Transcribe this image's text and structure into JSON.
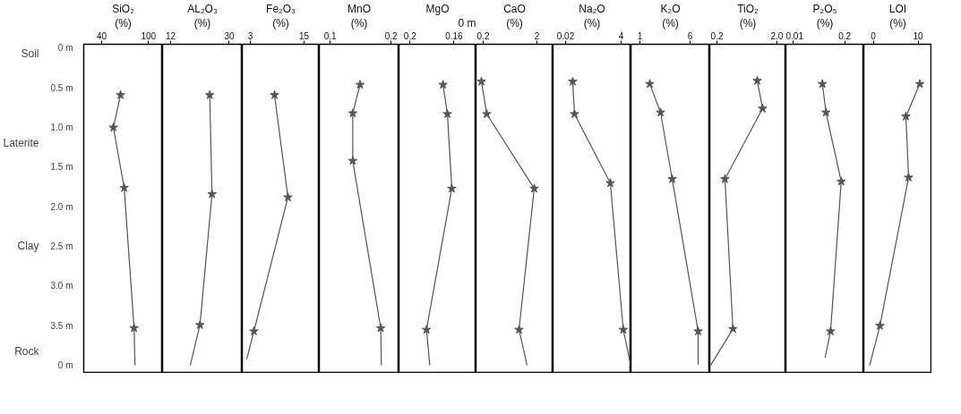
{
  "chart_data": [
    {
      "type": "line",
      "title": "SiO₂",
      "subtitle": "(%)",
      "xlim": [
        17,
        118
      ],
      "xticks": [
        40,
        100
      ],
      "ylim": [
        4.1,
        -0.05
      ],
      "yticks": [
        {
          "value": 0,
          "label": "0 m"
        },
        {
          "value": 0.5,
          "label": "0.5 m"
        },
        {
          "value": 1.0,
          "label": "1.0 m"
        },
        {
          "value": 1.5,
          "label": "1.5 m"
        },
        {
          "value": 2.0,
          "label": "2.0 m"
        },
        {
          "value": 2.5,
          "label": "2.5 m"
        },
        {
          "value": 3.0,
          "label": "3.0 m"
        },
        {
          "value": 3.5,
          "label": "3.5 m"
        },
        {
          "value": 4.0,
          "label": "0 m"
        }
      ],
      "annotations": [
        "Soil",
        "Laterite",
        "Clay",
        "Rock"
      ],
      "series": [
        {
          "color": "#555555",
          "marker": "star",
          "x": [
            64.2,
            55,
            68.8,
            81.5
          ],
          "values": [
            0.59,
            1.0,
            1.76,
            3.53
          ]
        },
        {
          "color": "#555555",
          "marker": "none",
          "x": [
            81.5,
            82.7
          ],
          "values": [
            3.53,
            4.0
          ]
        }
      ]
    },
    {
      "type": "line",
      "title": "AL₂O₃",
      "subtitle": "(%)",
      "xlim": [
        9.5,
        34
      ],
      "xticks": [
        12,
        30
      ],
      "ylim": [
        4.1,
        -0.05
      ],
      "tick_labels": "x",
      "series": [
        {
          "color": "#555555",
          "marker": "star",
          "x": [
            24.0,
            24.7,
            21.0
          ],
          "values": [
            0.59,
            1.84,
            3.49
          ]
        },
        {
          "color": "#555555",
          "marker": "none",
          "x": [
            21.0,
            18.0
          ],
          "values": [
            3.49,
            4.0
          ]
        }
      ]
    },
    {
      "type": "line",
      "title": "Fe₂O₃",
      "subtitle": "(%)",
      "xlim": [
        1.2,
        18.4
      ],
      "xticks": [
        3,
        15
      ],
      "ylim": [
        4.1,
        -0.05
      ],
      "tick_labels": "x",
      "series": [
        {
          "color": "#555555",
          "marker": "star",
          "x": [
            8.4,
            11.4,
            3.8
          ],
          "values": [
            0.59,
            1.88,
            3.57
          ]
        },
        {
          "color": "#555555",
          "marker": "none",
          "x": [
            3.8,
            2.2
          ],
          "values": [
            3.57,
            3.92
          ]
        }
      ]
    },
    {
      "type": "line",
      "title": "MnO",
      "subtitle": "(%)",
      "xlim": [
        0.082,
        0.213
      ],
      "xticks": [
        0.1,
        0.2
      ],
      "ylim": [
        4.1,
        -0.05
      ],
      "tick_labels": "x",
      "series": [
        {
          "color": "#555555",
          "marker": "star",
          "x": [
            0.149,
            0.137,
            0.137,
            0.183
          ],
          "values": [
            0.46,
            0.82,
            1.42,
            3.53
          ]
        },
        {
          "color": "#555555",
          "marker": "none",
          "x": [
            0.183,
            0.184
          ],
          "values": [
            3.53,
            4.0
          ]
        }
      ]
    },
    {
      "type": "line",
      "title": "MgO",
      "annotations": [
        "0 m"
      ],
      "xlim": [
        0.21,
        0.14
      ],
      "xticks": [
        0.2,
        0.16
      ],
      "ylim": [
        4.1,
        -0.05
      ],
      "tick_labels": "x",
      "series": [
        {
          "color": "#555555",
          "marker": "star",
          "x": [
            0.17,
            0.166,
            0.162,
            0.185
          ],
          "values": [
            0.46,
            0.83,
            1.77,
            3.55
          ]
        },
        {
          "color": "#555555",
          "marker": "none",
          "x": [
            0.185,
            0.182
          ],
          "values": [
            3.55,
            4.0
          ]
        }
      ]
    },
    {
      "type": "line",
      "title": "CaO",
      "subtitle": "(%)",
      "xlim": [
        -0.04,
        2.54
      ],
      "xticks": [
        0.2,
        2
      ],
      "ylim": [
        4.1,
        -0.05
      ],
      "tick_labels": "x",
      "series": [
        {
          "color": "#555555",
          "marker": "star",
          "x": [
            0.14,
            0.32,
            1.91,
            1.4
          ],
          "values": [
            0.42,
            0.83,
            1.77,
            3.55
          ]
        },
        {
          "color": "#555555",
          "marker": "none",
          "x": [
            1.4,
            1.67
          ],
          "values": [
            3.55,
            4.0
          ]
        }
      ]
    },
    {
      "type": "line",
      "title": "Na₂O",
      "subtitle": "(%)",
      "xlim": [
        -0.88,
        4.71
      ],
      "xticks": [
        0.02,
        4
      ],
      "ylim": [
        4.1,
        -0.05
      ],
      "tick_labels": "x",
      "series": [
        {
          "color": "#555555",
          "marker": "star",
          "x": [
            0.53,
            0.66,
            3.23,
            4.16
          ],
          "values": [
            0.42,
            0.83,
            1.7,
            3.55
          ]
        },
        {
          "color": "#555555",
          "marker": "none",
          "x": [
            4.16,
            4.7
          ],
          "values": [
            3.55,
            4.0
          ]
        }
      ]
    },
    {
      "type": "line",
      "title": "K₂O",
      "subtitle": "(%)",
      "xlim": [
        0.1,
        7.96
      ],
      "xticks": [
        1,
        6
      ],
      "ylim": [
        4.1,
        -0.05
      ],
      "tick_labels": "x",
      "series": [
        {
          "color": "#555555",
          "marker": "star",
          "x": [
            1.98,
            3.05,
            4.21,
            6.8
          ],
          "values": [
            0.45,
            0.81,
            1.65,
            3.57
          ]
        },
        {
          "color": "#555555",
          "marker": "none",
          "x": [
            6.8,
            6.8
          ],
          "values": [
            3.57,
            3.99
          ]
        }
      ]
    },
    {
      "type": "line",
      "title": "TiO₂",
      "subtitle": "(%)",
      "xlim": [
        -0.015,
        2.27
      ],
      "xticks": [
        0.2,
        {
          "value": 2,
          "label": "2.0"
        }
      ],
      "ylim": [
        4.1,
        -0.05
      ],
      "tick_labels": "x",
      "series": [
        {
          "color": "#555555",
          "marker": "star",
          "x": [
            1.41,
            1.57,
            0.44,
            0.68
          ],
          "values": [
            0.41,
            0.76,
            1.65,
            3.54
          ]
        },
        {
          "color": "#555555",
          "marker": "none",
          "x": [
            0.68,
            0.01
          ],
          "values": [
            3.54,
            4.0
          ]
        }
      ]
    },
    {
      "type": "line",
      "title": "P₂O₅",
      "subtitle": "(%)",
      "xlim": [
        -0.016,
        0.27
      ],
      "xticks": [
        0.01,
        0.2
      ],
      "ylim": [
        4.1,
        -0.05
      ],
      "tick_labels": "x",
      "series": [
        {
          "color": "#555555",
          "marker": "star",
          "x": [
            0.118,
            0.131,
            0.187,
            0.148
          ],
          "values": [
            0.45,
            0.81,
            1.68,
            3.57
          ]
        },
        {
          "color": "#555555",
          "marker": "none",
          "x": [
            0.148,
            0.128
          ],
          "values": [
            3.57,
            3.9
          ]
        }
      ]
    },
    {
      "type": "line",
      "title": "LOI",
      "subtitle": "(%)",
      "xlim": [
        -2.1,
        13.1
      ],
      "xticks": [
        0,
        10
      ],
      "ylim": [
        4.1,
        -0.05
      ],
      "tick_labels": "x",
      "series": [
        {
          "color": "#555555",
          "marker": "star",
          "x": [
            10.4,
            7.3,
            7.9,
            1.5
          ],
          "values": [
            0.45,
            0.86,
            1.63,
            3.5
          ]
        },
        {
          "color": "#555555",
          "marker": "none",
          "x": [
            1.5,
            -0.8
          ],
          "values": [
            3.5,
            4.0
          ]
        }
      ]
    }
  ]
}
